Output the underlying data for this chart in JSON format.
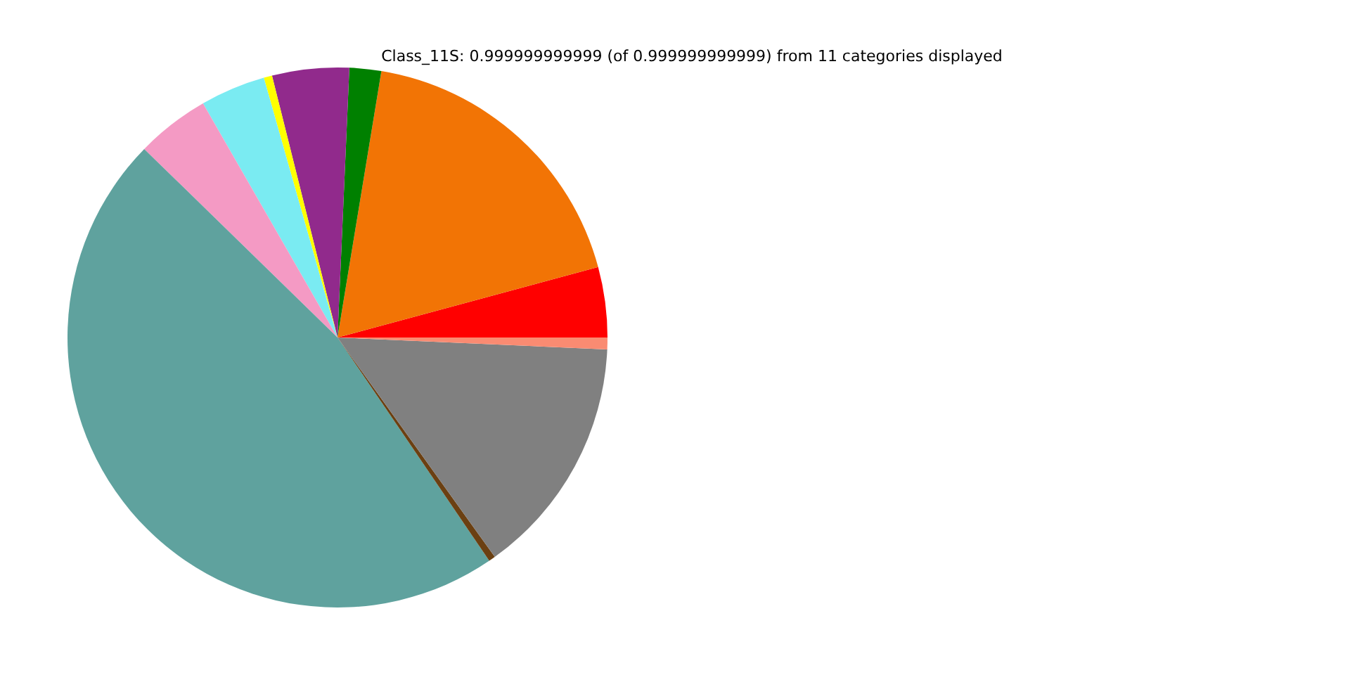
{
  "chart_data": {
    "type": "pie",
    "title": "Class_11S: 0.999999999999 (of 0.999999999999) from 11 categories displayed",
    "categories": [
      null,
      null,
      null,
      null,
      null,
      null,
      null,
      null,
      null,
      null,
      null
    ],
    "values": [
      4.2,
      18.2,
      1.9,
      4.6,
      0.5,
      3.9,
      4.4,
      46.8,
      0.4,
      14.4,
      0.7
    ],
    "colors": [
      "#ff0000",
      "#f27405",
      "#008000",
      "#912a8c",
      "#ffff00",
      "#7aebf2",
      "#f49ac4",
      "#5fa29e",
      "#6b4012",
      "#808080",
      "#fa8b72"
    ],
    "legend": false
  }
}
